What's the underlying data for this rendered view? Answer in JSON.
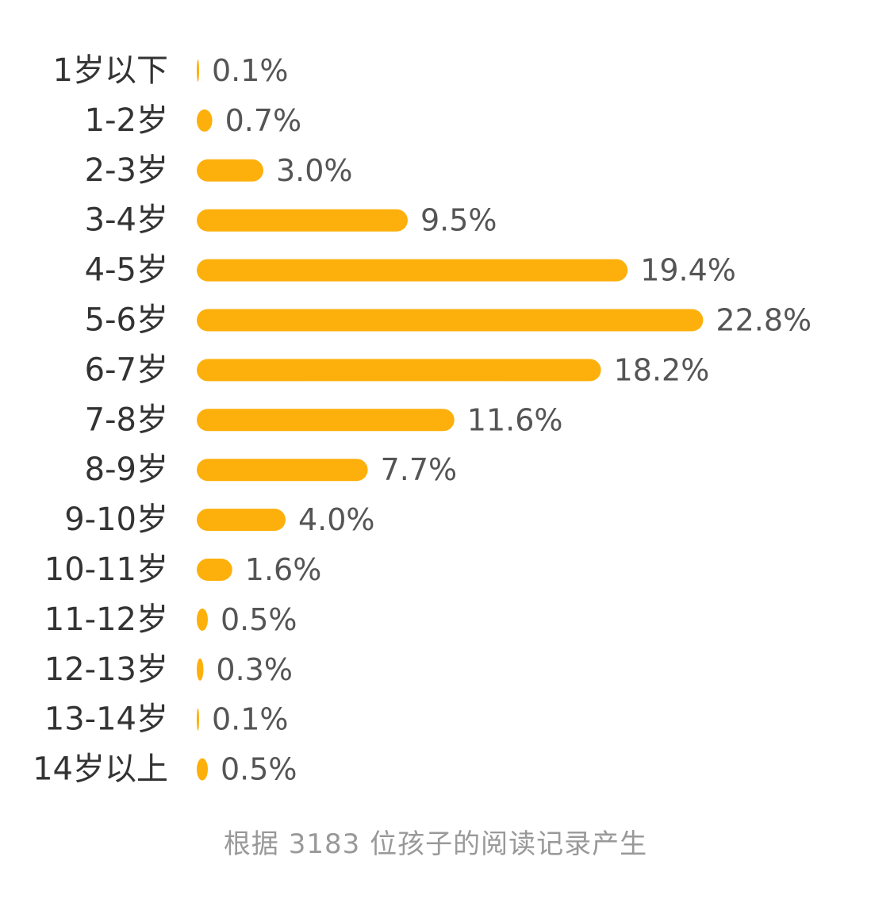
{
  "colors": {
    "bar": "#FDB00C",
    "category_text": "#333333",
    "value_text": "#555555",
    "footnote_text": "#999999"
  },
  "chart_data": {
    "type": "bar",
    "orientation": "horizontal",
    "categories": [
      "1岁以下",
      "1-2岁",
      "2-3岁",
      "3-4岁",
      "4-5岁",
      "5-6岁",
      "6-7岁",
      "7-8岁",
      "8-9岁",
      "9-10岁",
      "10-11岁",
      "11-12岁",
      "12-13岁",
      "13-14岁",
      "14岁以上"
    ],
    "values": [
      0.1,
      0.7,
      3.0,
      9.5,
      19.4,
      22.8,
      18.2,
      11.6,
      7.7,
      4.0,
      1.6,
      0.5,
      0.3,
      0.1,
      0.5
    ],
    "value_labels": [
      "0.1%",
      "0.7%",
      "3.0%",
      "9.5%",
      "19.4%",
      "22.8%",
      "18.2%",
      "11.6%",
      "7.7%",
      "4.0%",
      "1.6%",
      "0.5%",
      "0.3%",
      "0.1%",
      "0.5%"
    ],
    "unit": "%",
    "grid": false,
    "legend": "none"
  },
  "footnote": "根据 3183 位孩子的阅读记录产生"
}
